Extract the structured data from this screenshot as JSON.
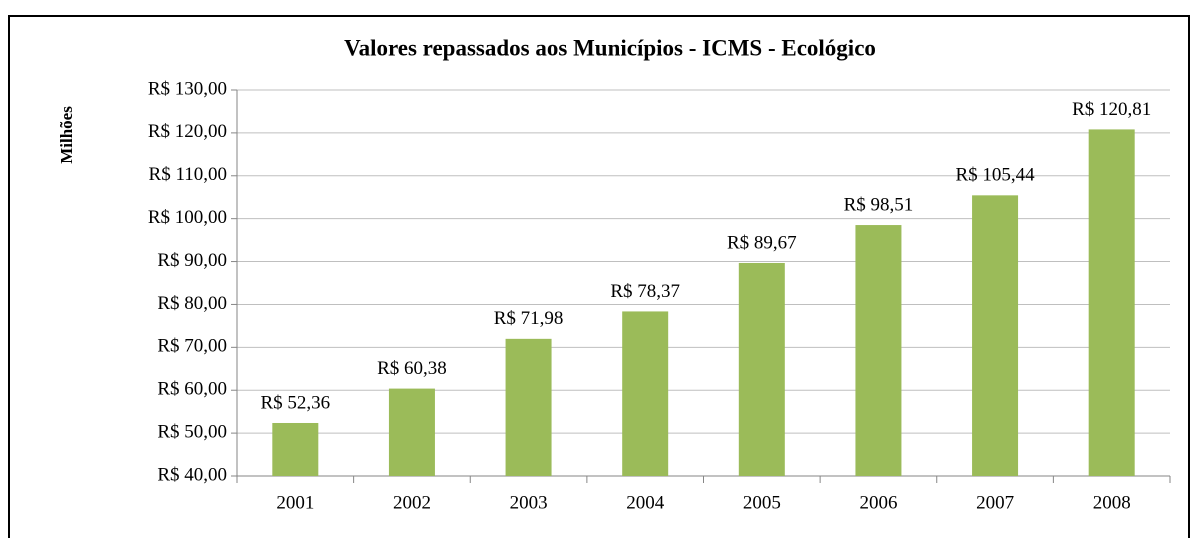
{
  "chart_data": {
    "type": "bar",
    "title": "Valores repassados aos Municípios  - ICMS - Ecológico",
    "y_label": "Milhões",
    "categories": [
      "2001",
      "2002",
      "2003",
      "2004",
      "2005",
      "2006",
      "2007",
      "2008"
    ],
    "values": [
      52.36,
      60.38,
      71.98,
      78.37,
      89.67,
      98.51,
      105.44,
      120.81
    ],
    "value_labels": [
      "R$ 52,36",
      "R$ 60,38",
      "R$ 71,98",
      "R$ 78,37",
      "R$ 89,67",
      "R$ 98,51",
      "R$ 105,44",
      "R$ 120,81"
    ],
    "color": "#9bbb59",
    "ylim": [
      40,
      130
    ],
    "yticks": [
      {
        "value": 40,
        "label": "R$ 40,00"
      },
      {
        "value": 50,
        "label": "R$ 50,00"
      },
      {
        "value": 60,
        "label": "R$ 60,00"
      },
      {
        "value": 70,
        "label": "R$ 70,00"
      },
      {
        "value": 80,
        "label": "R$ 80,00"
      },
      {
        "value": 90,
        "label": "R$ 90,00"
      },
      {
        "value": 100,
        "label": "R$ 100,00"
      },
      {
        "value": 110,
        "label": "R$ 110,00"
      },
      {
        "value": 120,
        "label": "R$ 120,00"
      },
      {
        "value": 130,
        "label": "R$ 130,00"
      }
    ],
    "grid": true
  }
}
